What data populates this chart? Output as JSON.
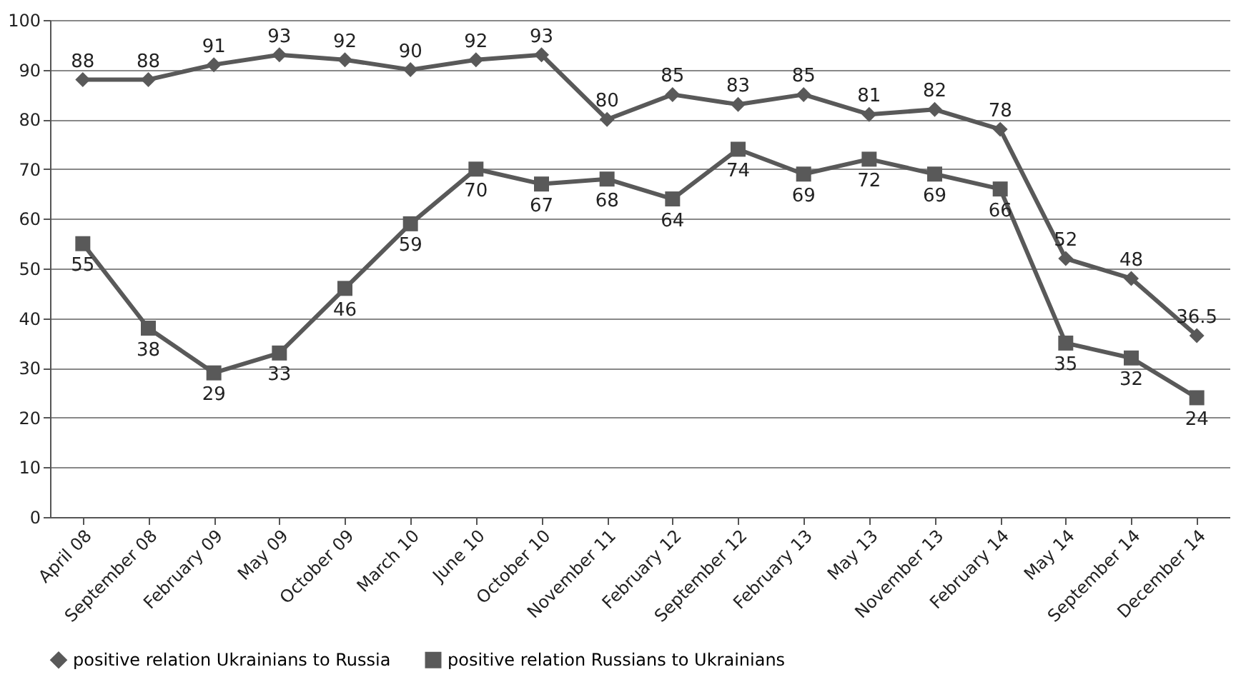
{
  "chart_data": {
    "type": "line",
    "categories": [
      "April 08",
      "September 08",
      "February 09",
      "May 09",
      "October 09",
      "March 10",
      "June 10",
      "October 10",
      "November 11",
      "February 12",
      "September 12",
      "February 13",
      "May 13",
      "November 13",
      "February 14",
      "May 14",
      "September 14",
      "December 14"
    ],
    "series": [
      {
        "name": "positive relation Ukrainians to Russia",
        "color": "#595959",
        "marker": "diamond",
        "values": [
          88,
          88,
          91,
          93,
          92,
          90,
          92,
          93,
          80,
          85,
          83,
          85,
          81,
          82,
          78,
          52,
          48,
          36.5
        ]
      },
      {
        "name": "positive relation Russians to Ukrainians",
        "color": "#595959",
        "marker": "square",
        "values": [
          55,
          38,
          29,
          33,
          46,
          59,
          70,
          67,
          68,
          64,
          74,
          69,
          72,
          69,
          66,
          35,
          32,
          24
        ]
      }
    ],
    "ylim": [
      0,
      100
    ],
    "yticks": [
      0,
      10,
      20,
      30,
      40,
      50,
      60,
      70,
      80,
      90,
      100
    ],
    "grid": "y",
    "legend": "bottom",
    "data_labels": true,
    "line_style": "solid"
  }
}
